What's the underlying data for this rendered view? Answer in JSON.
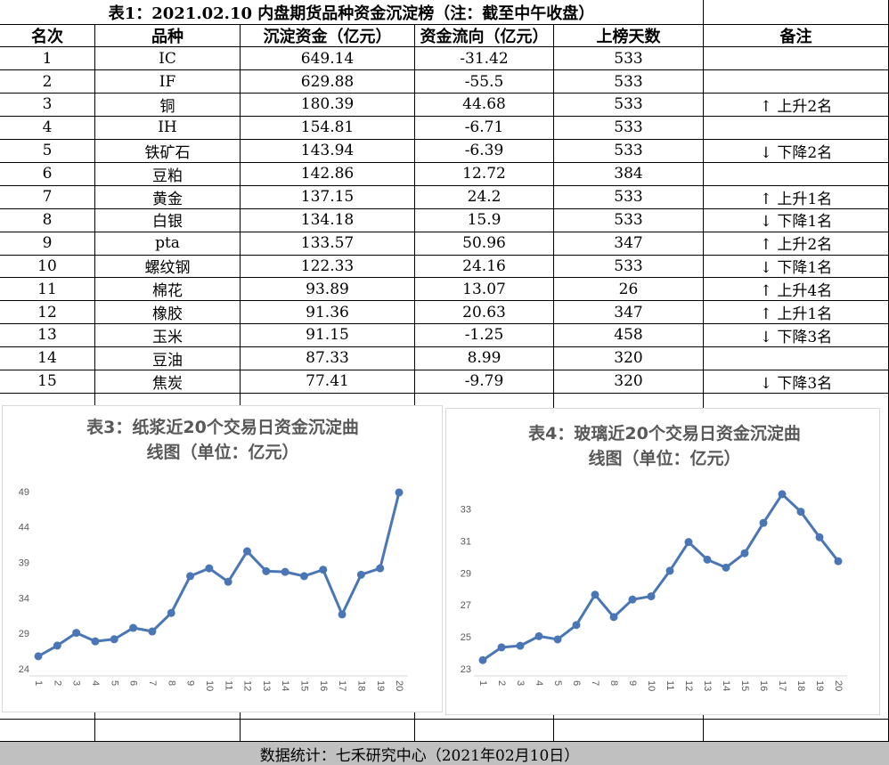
{
  "title": "表1：2021.02.10 内盘期货品种资金沉淀榜（注：截至中午收盘）",
  "table": {
    "headers": [
      "名次",
      "品种",
      "沉淀资金（亿元）",
      "资金流向（亿元）",
      "上榜天数",
      "备注"
    ],
    "rows": [
      [
        1,
        "IC",
        649.14,
        -31.42,
        533,
        null
      ],
      [
        2,
        "IF",
        629.88,
        -55.5,
        533,
        null
      ],
      [
        3,
        "铜",
        180.39,
        44.68,
        533,
        "↑ 上升2名"
      ],
      [
        4,
        "IH",
        154.81,
        -6.71,
        533,
        null
      ],
      [
        5,
        "铁矿石",
        143.94,
        -6.39,
        533,
        "↓ 下降2名"
      ],
      [
        6,
        "豆粕",
        142.86,
        12.72,
        384,
        null
      ],
      [
        7,
        "黄金",
        137.15,
        24.2,
        533,
        "↑ 上升1名"
      ],
      [
        8,
        "白银",
        134.18,
        15.9,
        533,
        "↓ 下降1名"
      ],
      [
        9,
        "pta",
        133.57,
        50.96,
        347,
        "↑ 上升2名"
      ],
      [
        10,
        "螺纹钢",
        122.33,
        24.16,
        533,
        "↓ 下降1名"
      ],
      [
        11,
        "棉花",
        93.89,
        13.07,
        26,
        "↑ 上升4名"
      ],
      [
        12,
        "橡胶",
        91.36,
        20.63,
        347,
        "↑ 上升1名"
      ],
      [
        13,
        "玉米",
        91.15,
        -1.25,
        458,
        "↓ 下降3名"
      ],
      [
        14,
        "豆油",
        87.33,
        8.99,
        320,
        null
      ],
      [
        15,
        "焦炭",
        77.41,
        -9.79,
        320,
        "↓ 下降3名"
      ]
    ]
  },
  "chart_data": [
    {
      "type": "line",
      "title": "表3：纸浆近20个交易日资金沉淀曲线图（单位：亿元）",
      "categories": [
        "1",
        "2",
        "3",
        "4",
        "5",
        "6",
        "7",
        "8",
        "9",
        "10",
        "11",
        "12",
        "13",
        "14",
        "15",
        "16",
        "17",
        "18",
        "19",
        "20"
      ],
      "series": [
        {
          "color": "#4a76b5",
          "values": [
            25.9,
            27.4,
            29.2,
            28.0,
            28.3,
            29.9,
            29.4,
            32.0,
            37.2,
            38.3,
            36.4,
            40.7,
            37.9,
            37.8,
            37.2,
            38.1,
            31.8,
            37.4,
            38.3,
            49.0
          ]
        }
      ],
      "ylim": [
        24,
        50
      ],
      "yticks": [
        24,
        29,
        34,
        39,
        44,
        49
      ],
      "grid": false
    },
    {
      "type": "line",
      "title": "表4：玻璃近20个交易日资金沉淀曲线图（单位：亿元）",
      "categories": [
        "1",
        "2",
        "3",
        "4",
        "5",
        "6",
        "7",
        "8",
        "9",
        "10",
        "11",
        "12",
        "13",
        "14",
        "15",
        "16",
        "17",
        "18",
        "19",
        "20"
      ],
      "series": [
        {
          "color": "#4a76b5",
          "values": [
            23.6,
            24.4,
            24.5,
            25.1,
            24.9,
            25.8,
            27.7,
            26.3,
            27.4,
            27.6,
            29.2,
            31.0,
            29.9,
            29.4,
            30.3,
            32.2,
            34.0,
            32.9,
            31.3,
            29.8
          ]
        }
      ],
      "ylim": [
        23,
        35
      ],
      "yticks": [
        23,
        25,
        27,
        29,
        31,
        33
      ],
      "grid": false
    }
  ],
  "footer": "数据统计：七禾研究中心（2021年02月10日）"
}
